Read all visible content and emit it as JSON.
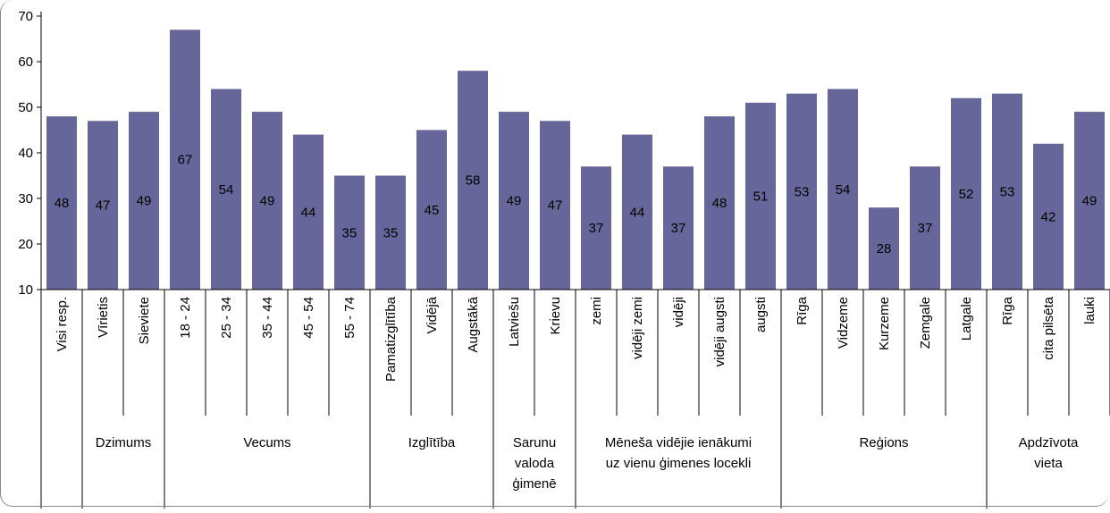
{
  "chart_data": {
    "type": "bar",
    "ylim": [
      10,
      70
    ],
    "yticks": [
      "10",
      "20",
      "30",
      "40",
      "50",
      "60",
      "70"
    ],
    "grid": false,
    "bar_color": "#66669a",
    "categories": [
      "Visi resp.",
      "Vīrietis",
      "Sieviete",
      "18 - 24",
      "25 - 34",
      "35 - 44",
      "45 - 54",
      "55 - 74",
      "Pamatizglītība",
      "Vidējā",
      "Augstākā",
      "Latviešu",
      "Krievu",
      "zemi",
      "vidēji zemi",
      "vidēji",
      "vidēji augsti",
      "augsti",
      "Rīga",
      "Vidzeme",
      "Kurzeme",
      "Zemgale",
      "Latgale",
      "Rīga",
      "cita pilsēta",
      "lauki"
    ],
    "values": [
      48,
      47,
      49,
      67,
      54,
      49,
      44,
      35,
      35,
      45,
      58,
      49,
      47,
      37,
      44,
      37,
      48,
      51,
      53,
      54,
      28,
      37,
      52,
      53,
      42,
      49
    ],
    "value_labels": [
      "48",
      "47",
      "49",
      "67",
      "54",
      "49",
      "44",
      "35",
      "35",
      "45",
      "58",
      "49",
      "47",
      "37",
      "44",
      "37",
      "48",
      "51",
      "53",
      "54",
      "28",
      "37",
      "52",
      "53",
      "42",
      "49"
    ],
    "groups": [
      {
        "lines": [
          ""
        ],
        "start": 0,
        "end": 0
      },
      {
        "lines": [
          "Dzimums"
        ],
        "start": 1,
        "end": 2
      },
      {
        "lines": [
          "Vecums"
        ],
        "start": 3,
        "end": 7
      },
      {
        "lines": [
          "Izglītība"
        ],
        "start": 8,
        "end": 10
      },
      {
        "lines": [
          "Sarunu",
          "valoda",
          "ģimenē"
        ],
        "start": 11,
        "end": 12
      },
      {
        "lines": [
          "Mēneša vidējie ienākumi",
          "uz vienu ģimenes locekli"
        ],
        "start": 13,
        "end": 17
      },
      {
        "lines": [
          "Reģions"
        ],
        "start": 18,
        "end": 22
      },
      {
        "lines": [
          "Apdzīvota",
          "vieta"
        ],
        "start": 23,
        "end": 25
      }
    ]
  }
}
